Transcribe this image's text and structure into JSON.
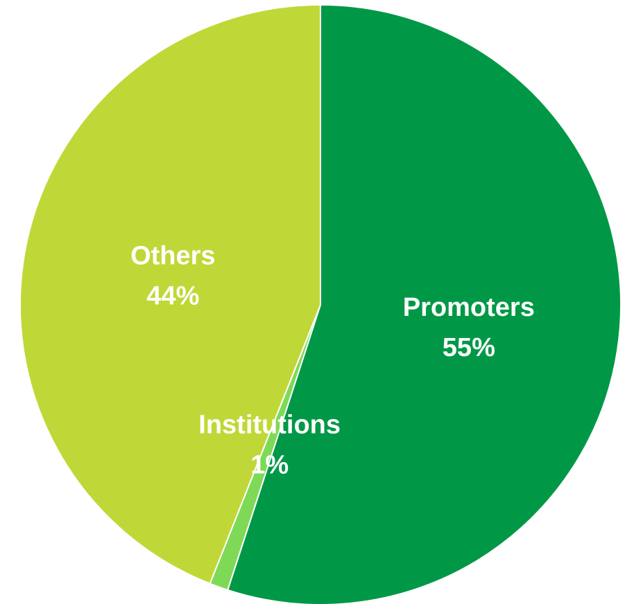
{
  "chart_data": {
    "type": "pie",
    "categories": [
      "Promoters",
      "Institutions",
      "Others"
    ],
    "values": [
      55,
      1,
      44
    ],
    "value_labels": [
      "55%",
      "1%",
      "44%"
    ],
    "colors": [
      "#009846",
      "#7ed957",
      "#c0d837"
    ]
  }
}
